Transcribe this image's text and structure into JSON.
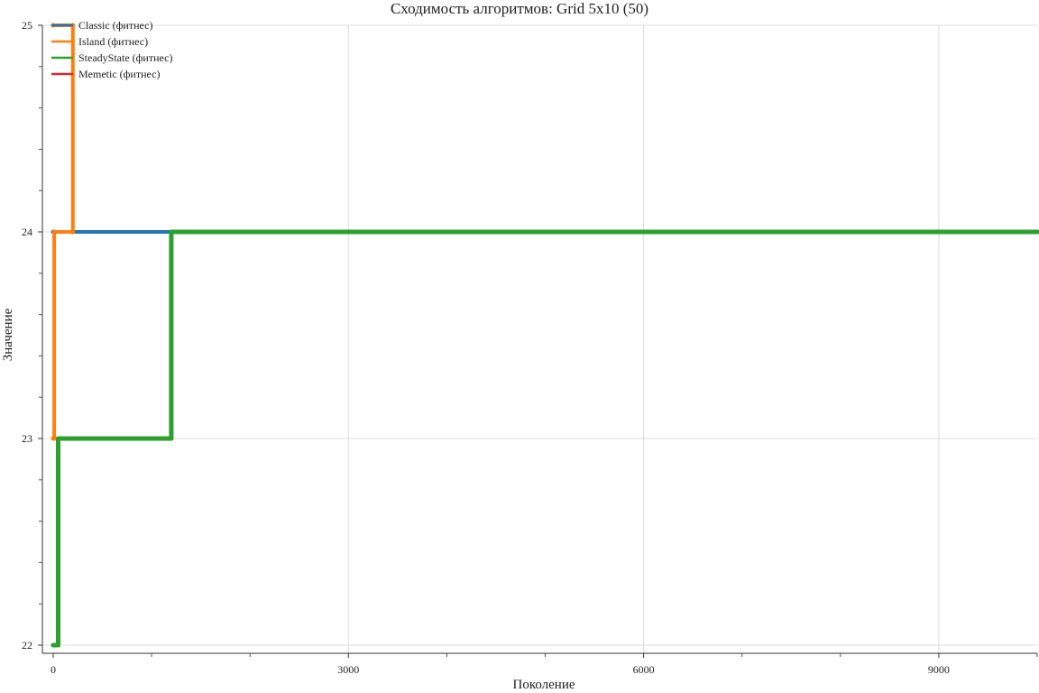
{
  "chart_data": {
    "type": "line",
    "title": "Сходимость алгоритмов: Grid 5x10 (50)",
    "xlabel": "Поколение",
    "ylabel": "Значение",
    "xlim": [
      0,
      10000
    ],
    "ylim": [
      22,
      25
    ],
    "x_ticks": [
      0,
      3000,
      6000,
      9000
    ],
    "x_minor_ticks": [
      1000,
      2000,
      4000,
      5000,
      7000,
      8000,
      10000
    ],
    "y_ticks": [
      22,
      23,
      24,
      25
    ],
    "y_minor_ticks": [
      22.2,
      22.4,
      22.6,
      22.8,
      23.2,
      23.4,
      23.6,
      23.8,
      24.2,
      24.4,
      24.6,
      24.8
    ],
    "grid": true,
    "legend_position": "top-left",
    "series": [
      {
        "name": "Classic (фитнес)",
        "color": "#1f77b4",
        "points": [
          [
            0,
            24
          ],
          [
            200,
            24
          ],
          [
            200,
            24
          ],
          [
            1200,
            24
          ],
          [
            10000,
            24
          ]
        ]
      },
      {
        "name": "Island (фитнес)",
        "color": "#ff7f0e",
        "points": [
          [
            0,
            23
          ],
          [
            10,
            23
          ],
          [
            10,
            24
          ],
          [
            200,
            24
          ],
          [
            200,
            25
          ],
          [
            0,
            25
          ]
        ]
      },
      {
        "name": "SteadyState (фитнес)",
        "color": "#2ca02c",
        "points": [
          [
            0,
            22
          ],
          [
            50,
            22
          ],
          [
            50,
            23
          ],
          [
            1200,
            23
          ],
          [
            1200,
            24
          ],
          [
            10000,
            24
          ]
        ]
      },
      {
        "name": "Memetic (фитнес)",
        "color": "#d62728",
        "points": [
          [
            0,
            25
          ]
        ]
      }
    ]
  }
}
